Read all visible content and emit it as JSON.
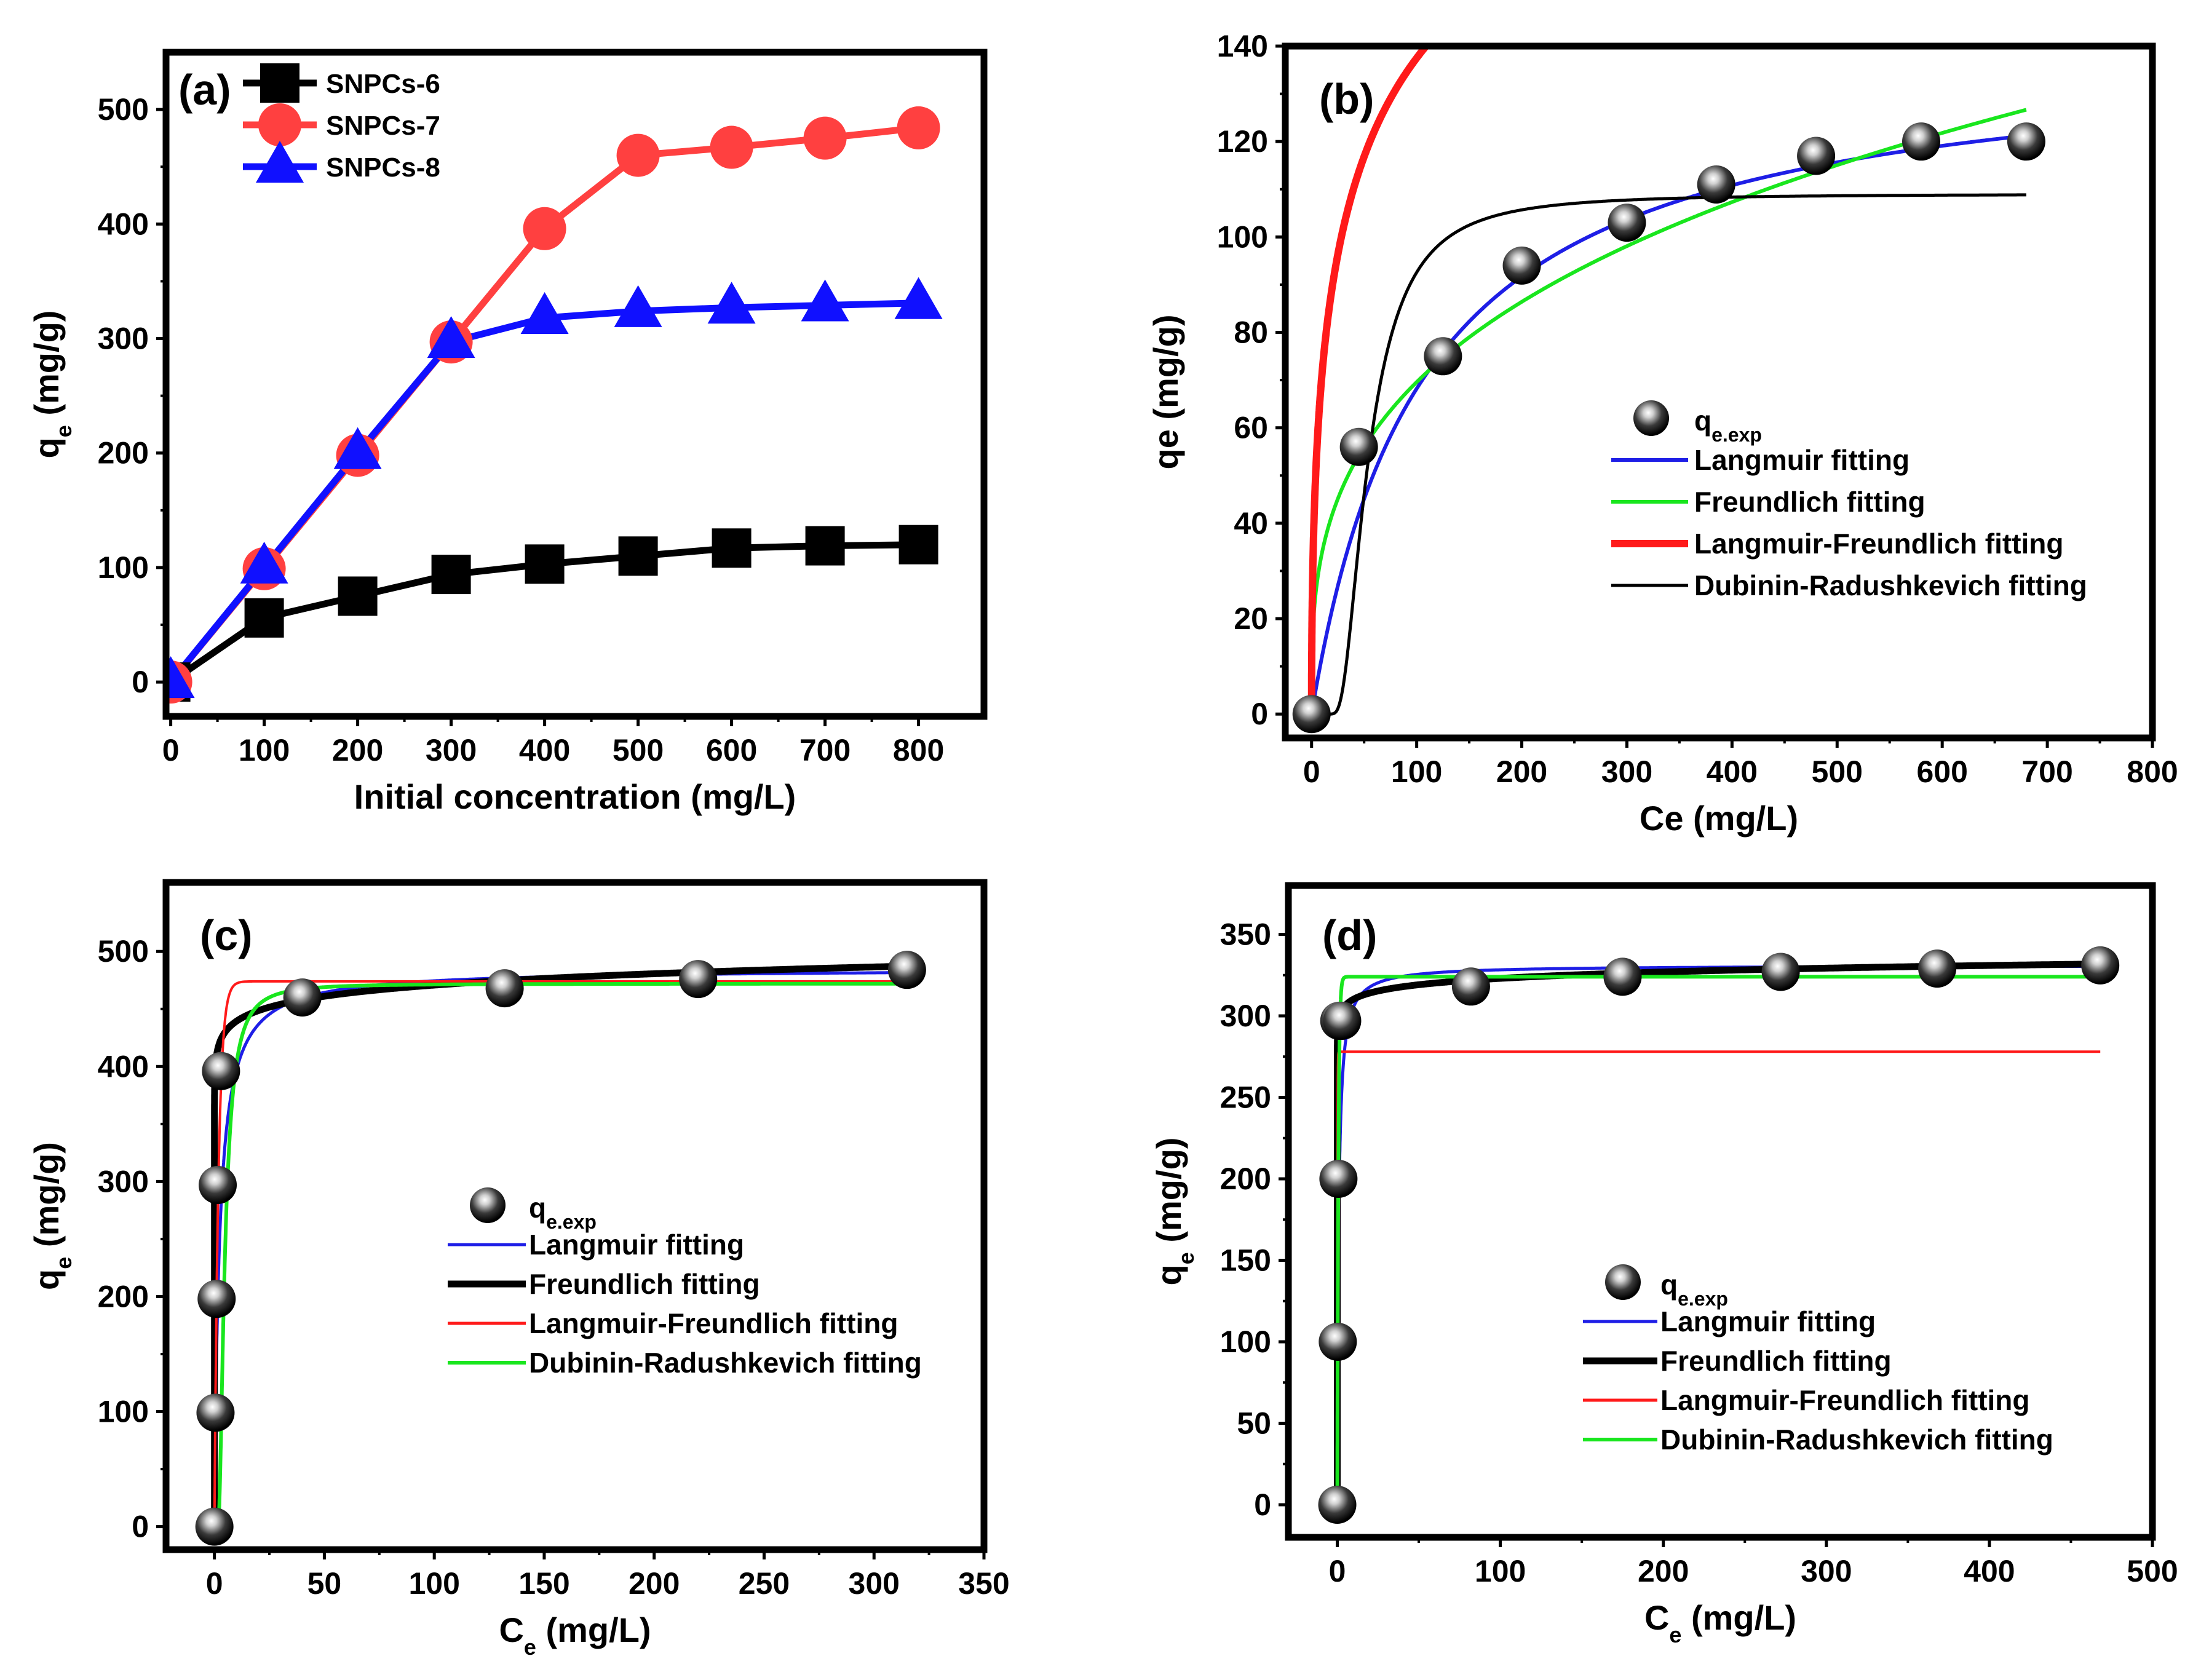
{
  "figure": {
    "colors": {
      "black": "#000000",
      "red": "#ff4040",
      "blue": "#1010ff",
      "green": "#19e61e",
      "langmuir_blue": "#1e1ee6",
      "lf_red": "#ff1a1a"
    }
  },
  "chart_data": [
    {
      "id": "a",
      "type": "line",
      "panel_label": "(a)",
      "xlabel": "Initial concentration (mg/L)",
      "ylabel": "q",
      "ylabel_sub": "e",
      "ylabel_unit": " (mg/g)",
      "xlim": [
        -5,
        870
      ],
      "ylim": [
        -30,
        550
      ],
      "xticks": [
        0,
        100,
        200,
        300,
        400,
        500,
        600,
        700,
        800
      ],
      "yticks": [
        0,
        100,
        200,
        300,
        400,
        500
      ],
      "grid": false,
      "legend_position": "top-left",
      "x": [
        0,
        100,
        200,
        300,
        400,
        500,
        600,
        700,
        800
      ],
      "series": [
        {
          "name": "SNPCs-6",
          "color": "#000000",
          "marker": "square",
          "values": [
            0,
            56,
            75,
            94,
            103,
            110,
            117,
            119,
            120
          ]
        },
        {
          "name": "SNPCs-7",
          "color": "#ff4040",
          "marker": "circle",
          "values": [
            0,
            99,
            198,
            297,
            396,
            460,
            467,
            475,
            484
          ]
        },
        {
          "name": "SNPCs-8",
          "color": "#1010ff",
          "marker": "triangle",
          "values": [
            0,
            100,
            200,
            297,
            318,
            324,
            327,
            329,
            331
          ]
        }
      ]
    },
    {
      "id": "b",
      "type": "scatter",
      "panel_label": "(b)",
      "xlabel": "Ce (mg/L)",
      "ylabel": "qe (mg/g)",
      "xlim": [
        -25,
        800
      ],
      "ylim": [
        -5,
        140
      ],
      "xticks": [
        0,
        100,
        200,
        300,
        400,
        500,
        600,
        700,
        800
      ],
      "yticks": [
        0,
        20,
        40,
        60,
        80,
        100,
        120,
        140
      ],
      "grid": false,
      "legend_position": "center-right",
      "points": {
        "name": "q",
        "name_sub": "e.exp",
        "x": [
          0,
          45,
          125,
          200,
          300,
          385,
          480,
          580,
          680
        ],
        "y": [
          0,
          56,
          75,
          94,
          103,
          111,
          117,
          120,
          120
        ]
      },
      "fits": [
        {
          "name": "Langmuir fitting",
          "color": "#1e1ee6",
          "model": "langmuir",
          "params": {
            "qm": 140,
            "k": 0.0095
          },
          "width": 6
        },
        {
          "name": "Freundlich fitting",
          "color": "#19e61e",
          "model": "freundlich",
          "params": {
            "k": 16.5,
            "n": 0.3125
          },
          "width": 6
        },
        {
          "name": "Langmuir-Freundlich fitting",
          "color": "#ff1a1a",
          "model": "langmuir_freundlich",
          "params": {
            "qm": 240,
            "k": 0.018,
            "n": 0.5
          },
          "width": 12
        },
        {
          "name": "Dubinin-Radushkevich fitting",
          "color": "#000000",
          "model": "dubinin_radushkevich",
          "params": {
            "qm": 109,
            "c": 47,
            "a": 2.4
          },
          "width": 5
        }
      ],
      "fit_x_range": [
        0,
        680
      ]
    },
    {
      "id": "c",
      "type": "scatter",
      "panel_label": "(c)",
      "xlabel": "C",
      "xlabel_sub": "e",
      "xlabel_unit": " (mg/L)",
      "ylabel": "q",
      "ylabel_sub": "e",
      "ylabel_unit": " (mg/g)",
      "xlim": [
        -22,
        350
      ],
      "ylim": [
        -20,
        560
      ],
      "xticks": [
        0,
        50,
        100,
        150,
        200,
        250,
        300,
        350
      ],
      "yticks": [
        0,
        100,
        200,
        300,
        400,
        500
      ],
      "grid": false,
      "legend_position": "center-right",
      "points": {
        "name": "q",
        "name_sub": "e.exp",
        "x": [
          0,
          0.5,
          1,
          1.5,
          3,
          40,
          132,
          220,
          315
        ],
        "y": [
          0,
          99,
          198,
          297,
          396,
          460,
          468,
          476,
          484
        ]
      },
      "fits": [
        {
          "name": "Langmuir fitting",
          "color": "#1e1ee6",
          "model": "langmuir",
          "params": {
            "qm": 485,
            "k": 0.45
          },
          "width": 5
        },
        {
          "name": "Freundlich fitting",
          "color": "#000000",
          "model": "freundlich",
          "params": {
            "k": 410,
            "n": 0.03
          },
          "width": 11
        },
        {
          "name": "Langmuir-Freundlich fitting",
          "color": "#ff1a1a",
          "model": "saturation",
          "params": {
            "qm": 474,
            "k": 0.55
          },
          "width": 4
        },
        {
          "name": "Dubinin-Radushkevich fitting",
          "color": "#19e61e",
          "model": "dubinin_radushkevich",
          "params": {
            "qm": 472,
            "c": 4,
            "a": 2
          },
          "width": 6
        }
      ],
      "fit_x_range": [
        0,
        315
      ]
    },
    {
      "id": "d",
      "type": "scatter",
      "panel_label": "(d)",
      "xlabel": "C",
      "xlabel_sub": "e",
      "xlabel_unit": " (mg/L)",
      "ylabel": "q",
      "ylabel_sub": "e",
      "ylabel_unit": " (mg/g)",
      "xlim": [
        -30,
        500
      ],
      "ylim": [
        -20,
        380
      ],
      "xticks": [
        0,
        100,
        200,
        300,
        400,
        500
      ],
      "yticks": [
        0,
        50,
        100,
        150,
        200,
        250,
        300,
        350
      ],
      "grid": false,
      "legend_position": "bottom-right",
      "points": {
        "name": "q",
        "name_sub": "e.exp",
        "x": [
          0,
          0.3,
          0.7,
          1.2,
          3,
          82,
          175,
          272,
          368,
          468
        ],
        "y": [
          0,
          100,
          200,
          297,
          297,
          318,
          324,
          327,
          329,
          331
        ]
      },
      "fits": [
        {
          "name": "Langmuir fitting",
          "color": "#1e1ee6",
          "model": "langmuir",
          "params": {
            "qm": 331,
            "k": 1.2
          },
          "width": 5
        },
        {
          "name": "Freundlich fitting",
          "color": "#000000",
          "model": "freundlich",
          "params": {
            "k": 298,
            "n": 0.0175
          },
          "width": 11
        },
        {
          "name": "Langmuir-Freundlich fitting",
          "color": "#ff1a1a",
          "model": "saturation",
          "params": {
            "qm": 278,
            "k": 8
          },
          "width": 4
        },
        {
          "name": "Dubinin-Radushkevich fitting",
          "color": "#19e61e",
          "model": "saturation",
          "params": {
            "qm": 324,
            "k": 1.5
          },
          "width": 6
        }
      ],
      "fit_x_range": [
        0,
        468
      ]
    }
  ]
}
